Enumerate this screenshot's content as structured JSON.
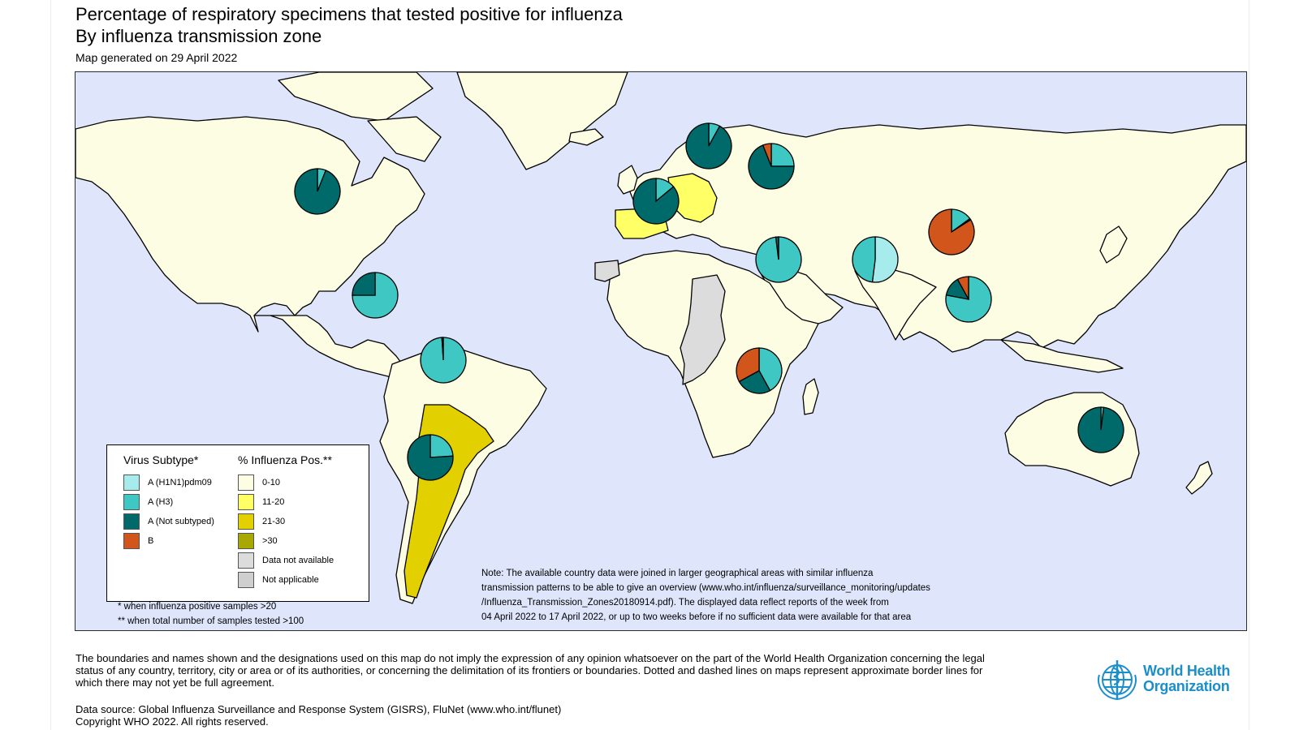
{
  "header": {
    "title_line1": "Percentage of respiratory specimens that tested positive for influenza",
    "title_line2": "By influenza transmission zone",
    "generated": "Map generated on 29 April 2022"
  },
  "colors": {
    "ocean": "#dfe6fb",
    "pct_0_10": "#fdfde4",
    "pct_11_20": "#ffff66",
    "pct_21_30": "#e3d000",
    "pct_gt30": "#a8a800",
    "no_data": "#dcdcdc",
    "not_applicable": "#cfcfcf",
    "h1n1": "#a6ecec",
    "h3": "#3fc8c3",
    "a_not_subtyped": "#006a6a",
    "b": "#d2561b"
  },
  "legend": {
    "subtype_title": "Virus Subtype*",
    "pct_title": "% Influenza Pos.**",
    "subtypes": [
      {
        "label": "A (H1N1)pdm09",
        "color": "#a6ecec"
      },
      {
        "label": "A (H3)",
        "color": "#3fc8c3"
      },
      {
        "label": "A (Not subtyped)",
        "color": "#006a6a"
      },
      {
        "label": "B",
        "color": "#d2561b"
      }
    ],
    "pct_bins": [
      {
        "label": "0-10",
        "color": "#fdfde4"
      },
      {
        "label": "11-20",
        "color": "#ffff66"
      },
      {
        "label": "21-30",
        "color": "#e3d000"
      },
      {
        "label": ">30",
        "color": "#a8a800"
      },
      {
        "label": "Data not available",
        "color": "#dcdcdc"
      },
      {
        "label": "Not applicable",
        "color": "#cfcfcf"
      }
    ],
    "footnote1": "* when influenza positive samples >20",
    "footnote2": "** when total number of samples tested >100"
  },
  "note": {
    "line1": "Note: The available country data were joined in larger geographical areas with similar influenza",
    "line2": "transmission patterns to be able to give an overview (www.who.int/influenza/surveillance_monitoring/updates",
    "line3": "/Influenza_Transmission_Zones20180914.pdf). The displayed data reflect reports of the week from",
    "line4": "04 April 2022 to 17 April 2022, or up to two weeks before if no sufficient data were available for that area"
  },
  "pies": [
    {
      "zone": "North America",
      "h1n1": 0,
      "h3": 0.06,
      "a_ns": 0.94,
      "b": 0
    },
    {
      "zone": "Northern Europe",
      "h1n1": 0,
      "h3": 0.08,
      "a_ns": 0.92,
      "b": 0
    },
    {
      "zone": "Eastern Europe",
      "h1n1": 0,
      "h3": 0.25,
      "a_ns": 0.69,
      "b": 0.06
    },
    {
      "zone": "South West Europe",
      "h1n1": 0,
      "h3": 0.14,
      "a_ns": 0.86,
      "b": 0
    },
    {
      "zone": "Western Asia",
      "h1n1": 0,
      "h3": 0.98,
      "a_ns": 0.02,
      "b": 0
    },
    {
      "zone": "Southern Asia",
      "h1n1": 0.52,
      "h3": 0.48,
      "a_ns": 0,
      "b": 0
    },
    {
      "zone": "Eastern Asia",
      "h1n1": 0,
      "h3": 0.15,
      "a_ns": 0.01,
      "b": 0.84
    },
    {
      "zone": "South East Asia",
      "h1n1": 0,
      "h3": 0.78,
      "a_ns": 0.14,
      "b": 0.08
    },
    {
      "zone": "Central America Caribbean",
      "h1n1": 0,
      "h3": 0.75,
      "a_ns": 0.25,
      "b": 0
    },
    {
      "zone": "Tropical South America",
      "h1n1": 0,
      "h3": 0.99,
      "a_ns": 0.01,
      "b": 0
    },
    {
      "zone": "Eastern Africa",
      "h1n1": 0,
      "h3": 0.42,
      "a_ns": 0.25,
      "b": 0.33
    },
    {
      "zone": "Temperate South America",
      "h1n1": 0,
      "h3": 0.24,
      "a_ns": 0.76,
      "b": 0
    },
    {
      "zone": "Oceania Melanesia Polynesia",
      "h1n1": 0,
      "h3": 0.02,
      "a_ns": 0.98,
      "b": 0
    }
  ],
  "disclaimer": "The boundaries and names shown and the designations used on this map do not imply the expression of any opinion whatsoever on the part of the World Health Organization concerning the legal status of any country, territory, city or area or of its authorities, or concerning the delimitation of its frontiers or boundaries. Dotted and dashed lines on maps represent approximate border lines for which there may not yet be full agreement.",
  "datasource": {
    "line1": "Data source: Global Influenza Surveillance and Response System (GISRS), FluNet (www.who.int/flunet)",
    "line2": "Copyright WHO 2022. All rights reserved."
  },
  "logo": {
    "line1": "World Health",
    "line2": "Organization"
  }
}
